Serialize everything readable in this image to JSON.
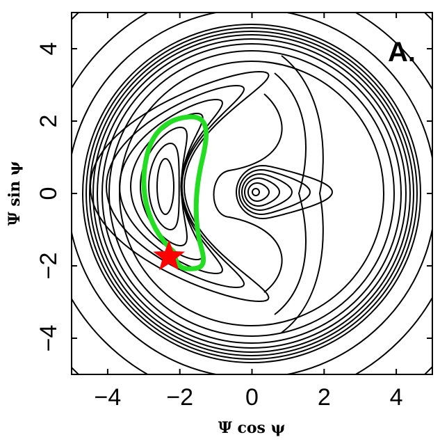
{
  "chart_data": {
    "type": "scatter",
    "x_label": "Ψ cos ψ",
    "y_label": "Ψ sin ψ",
    "panel_label": "A.",
    "xlim": [
      -5,
      5
    ],
    "ylim": [
      -5,
      5
    ],
    "xticks": [
      {
        "value": -4,
        "label": "−4"
      },
      {
        "value": -2,
        "label": "−2"
      },
      0,
      2,
      4
    ],
    "yticks": [
      {
        "value": -4,
        "label": "−4"
      },
      {
        "value": -2,
        "label": "−2"
      },
      0,
      2,
      4
    ],
    "series": [
      {
        "x": [
          -2.3
        ],
        "values": [
          -1.75
        ],
        "color": "#ff0000",
        "marker": "star"
      }
    ],
    "orbit_color": "#22dd22"
  }
}
